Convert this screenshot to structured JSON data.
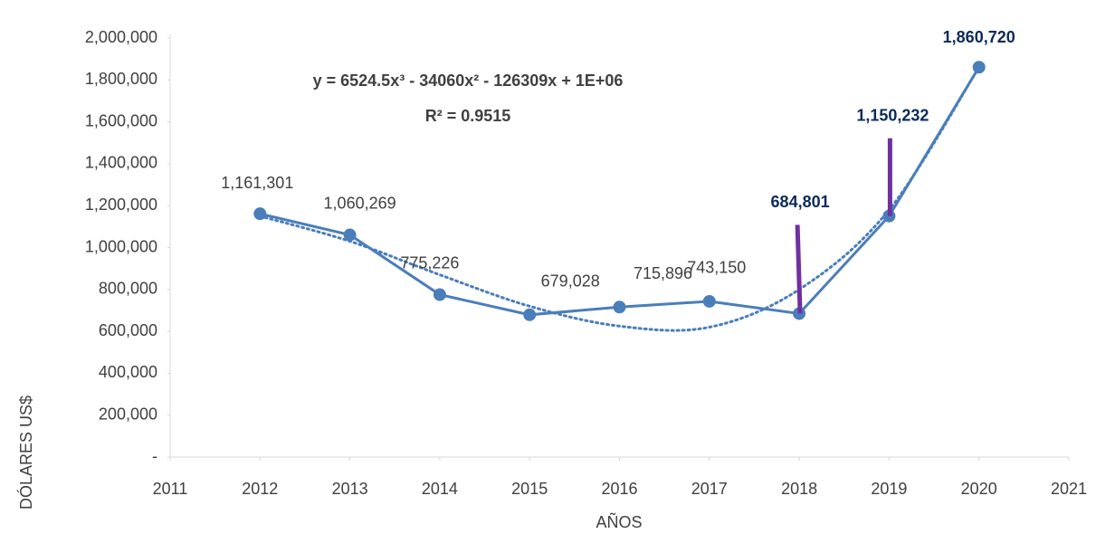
{
  "chart_data": {
    "type": "line",
    "equation": "y = 6524.5x³ - 34060x² - 126309x + 1E+06",
    "r_squared": "R² = 0.9515",
    "x_label": "AÑOS",
    "y_label": "DÓLARES US$",
    "xlim": [
      2011,
      2021
    ],
    "xticks": [
      2011,
      2012,
      2013,
      2014,
      2015,
      2016,
      2017,
      2018,
      2019,
      2020,
      2021
    ],
    "ylim": [
      0,
      2000000
    ],
    "yticks": [
      {
        "value": 0,
        "label": "-"
      },
      {
        "value": 200000,
        "label": "200,000"
      },
      {
        "value": 400000,
        "label": "400,000"
      },
      {
        "value": 600000,
        "label": "600,000"
      },
      {
        "value": 800000,
        "label": "800,000"
      },
      {
        "value": 1000000,
        "label": "1,000,000"
      },
      {
        "value": 1200000,
        "label": "1,200,000"
      },
      {
        "value": 1400000,
        "label": "1,400,000"
      },
      {
        "value": 1600000,
        "label": "1,600,000"
      },
      {
        "value": 1800000,
        "label": "1,800,000"
      },
      {
        "value": 2000000,
        "label": "2,000,000"
      }
    ],
    "grid": false,
    "series": [
      {
        "color": "#4a7ebb",
        "x": [
          2012,
          2013,
          2014,
          2015,
          2016,
          2017,
          2018,
          2019,
          2020
        ],
        "values": [
          1161301,
          1060269,
          775226,
          679028,
          715896,
          743150,
          684801,
          1150232,
          1860720
        ],
        "value_labels": [
          "1,161,301",
          "1,060,269",
          "775,226",
          "679,028",
          "715,896",
          "743,150",
          "684,801",
          "1,150,232",
          "1,860,720"
        ],
        "value_label_colors": [
          "#404040",
          "#404040",
          "#404040",
          "#404040",
          "#404040",
          "#404040",
          "#0b2a5b",
          "#0b2a5b",
          "#0b2a5b"
        ]
      }
    ],
    "trendline": {
      "color": "#4a7ebb",
      "x": [
        2012,
        2013,
        2014,
        2015,
        2016,
        2017,
        2018,
        2019,
        2020
      ],
      "values": [
        1150000,
        1030000,
        870000,
        720000,
        625000,
        620000,
        800000,
        1180000,
        1860000
      ]
    },
    "connector_color": "#7030a0"
  }
}
